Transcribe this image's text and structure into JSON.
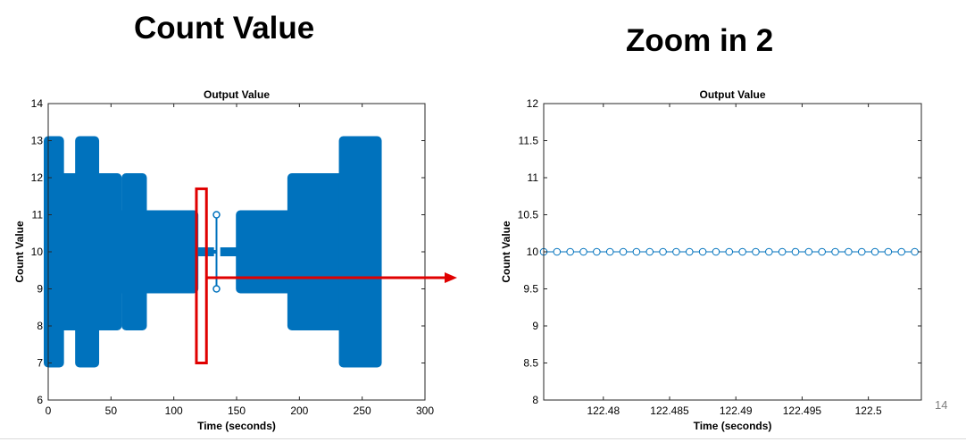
{
  "slide": {
    "title_left": "Count Value",
    "title_right": "Zoom in 2",
    "page_number": "14"
  },
  "colors": {
    "series": "#0072BD",
    "highlight": "#e00000"
  },
  "chart_data": [
    {
      "type": "line",
      "title": "Output Value",
      "xlabel": "Time (seconds)",
      "ylabel": "Count Value",
      "xlim": [
        0,
        300
      ],
      "ylim": [
        6,
        14
      ],
      "xticks": [
        0,
        50,
        100,
        150,
        200,
        250,
        300
      ],
      "yticks": [
        6,
        7,
        8,
        9,
        10,
        11,
        12,
        13,
        14
      ],
      "grid": false,
      "bands": [
        {
          "x": [
            0,
            9
          ],
          "y": [
            7,
            13
          ]
        },
        {
          "x": [
            9,
            19
          ],
          "y": [
            8,
            12
          ]
        },
        {
          "x": [
            25,
            37
          ],
          "y": [
            7,
            13
          ]
        },
        {
          "x": [
            19,
            25
          ],
          "y": [
            8,
            12
          ]
        },
        {
          "x": [
            37,
            55
          ],
          "y": [
            8,
            12
          ]
        },
        {
          "x": [
            55,
            62
          ],
          "y": [
            9,
            11
          ]
        },
        {
          "x": [
            62,
            75
          ],
          "y": [
            8,
            12
          ]
        },
        {
          "x": [
            75,
            97
          ],
          "y": [
            9,
            11
          ]
        },
        {
          "x": [
            97,
            116
          ],
          "y": [
            9,
            11
          ]
        },
        {
          "x": [
            98,
            132
          ],
          "y": [
            10,
            10
          ]
        },
        {
          "x": [
            137,
            153
          ],
          "y": [
            10,
            10
          ]
        },
        {
          "x": [
            153,
            172
          ],
          "y": [
            9,
            11
          ]
        },
        {
          "x": [
            172,
            194
          ],
          "y": [
            9,
            11
          ]
        },
        {
          "x": [
            194,
            210
          ],
          "y": [
            8,
            12
          ]
        },
        {
          "x": [
            210,
            235
          ],
          "y": [
            8,
            12
          ]
        },
        {
          "x": [
            235,
            249
          ],
          "y": [
            7,
            13
          ]
        },
        {
          "x": [
            249,
            262
          ],
          "y": [
            7,
            13
          ]
        }
      ],
      "thin_segment": {
        "x": 134,
        "y": [
          9,
          11
        ]
      },
      "highlight_box": {
        "x": [
          118,
          126
        ],
        "y": [
          7,
          11.7
        ]
      },
      "arrow": {
        "y": 9.3
      }
    },
    {
      "type": "line",
      "title": "Output Value",
      "xlabel": "Time (seconds)",
      "ylabel": "Count Value",
      "xlim": [
        122.4755,
        122.504
      ],
      "ylim": [
        8,
        12
      ],
      "xticks": [
        122.48,
        122.485,
        122.49,
        122.495,
        122.5
      ],
      "xtick_labels": [
        "122.48",
        "122.485",
        "122.49",
        "122.495",
        "122.5"
      ],
      "yticks": [
        8,
        8.5,
        9,
        9.5,
        10,
        10.5,
        11,
        11.5,
        12
      ],
      "ytick_labels": [
        "8",
        "8.5",
        "9",
        "9.5",
        "10",
        "10.5",
        "11",
        "11.5",
        "12"
      ],
      "grid": false,
      "marker": "circle",
      "x_start": 122.4755,
      "x_step": 0.001,
      "point_count": 29,
      "y_value": 10
    }
  ]
}
